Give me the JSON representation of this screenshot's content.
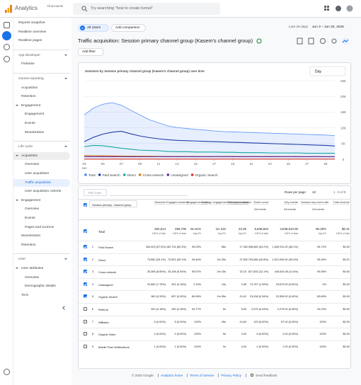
{
  "topbar": {
    "product": "Analytics",
    "account": "All accounts",
    "search_placeholder": "Try searching \"how to create funnel\""
  },
  "sidebar": {
    "top": [
      "Reports snapshot",
      "Realtime overview",
      "Realtime pages"
    ],
    "sections": [
      {
        "title": "App developer",
        "items": [
          {
            "label": "Firebase"
          }
        ]
      },
      {
        "title": "Games reporting",
        "items": [
          {
            "label": "Acquisition"
          },
          {
            "label": "Retention"
          },
          {
            "label": "Engagement",
            "children": [
              "Engagement",
              "Events",
              "Monetization"
            ]
          }
        ]
      },
      {
        "title": "Life cycle",
        "items": [
          {
            "label": "Acquisition",
            "children": [
              "Overview",
              "User acquisition",
              "Traffic acquisition",
              "User acquisition cohorts"
            ]
          },
          {
            "label": "Engagement",
            "children": [
              "Overview",
              "Events",
              "Pages and screens"
            ]
          },
          {
            "label": "Monetization"
          },
          {
            "label": "Retention"
          }
        ]
      },
      {
        "title": "User",
        "items": [
          {
            "label": "User attributes",
            "children": [
              "Overview",
              "Demographic details"
            ]
          },
          {
            "label": "Tech"
          }
        ]
      }
    ]
  },
  "header": {
    "segment_letter": "A",
    "segment": "All Users",
    "add_comparison": "Add comparison",
    "range_label": "Last 28 days",
    "range": "Jun 3 – Jun 30, 2025",
    "title": "Traffic acquisition: Session primary channel group (Kasem's channel group)",
    "add_filter": "Add filter"
  },
  "chart_controls": {
    "granularity": "Day"
  },
  "chart_data": {
    "type": "line",
    "title": "Sessions by Session primary channel group (Kasem's channel group) over time",
    "x": [
      3,
      4,
      5,
      6,
      7,
      8,
      9,
      10,
      11,
      12,
      13,
      14,
      15,
      16,
      17,
      18,
      19,
      20,
      21,
      22,
      23,
      24,
      25,
      26,
      27,
      28,
      29,
      30
    ],
    "xlim": [
      3,
      30
    ],
    "xticks": [
      {
        "value": 3,
        "label": "03"
      },
      {
        "value": 5,
        "label": "05"
      },
      {
        "value": 7,
        "label": "07"
      },
      {
        "value": 9,
        "label": "09"
      },
      11,
      13,
      15,
      17,
      19,
      21,
      23,
      25,
      27,
      29
    ],
    "xtick_month": "Jun",
    "ylim": [
      0,
      25000
    ],
    "yticks": [
      0,
      {
        "value": 5000,
        "label": "5K"
      },
      {
        "value": 10000,
        "label": "10K"
      },
      {
        "value": 15000,
        "label": "15K"
      },
      {
        "value": 20000,
        "label": "20K"
      },
      {
        "value": 25000,
        "label": "25K"
      }
    ],
    "grid": true,
    "series": [
      {
        "name": "Total",
        "color": "#4285f4",
        "values": [
          14100,
          16300,
          17500,
          18000,
          17200,
          15600,
          14100,
          12600,
          11600,
          10600,
          10100,
          9800,
          9500,
          9300,
          9000,
          8800,
          8700,
          8600,
          8500,
          8400,
          8300,
          8200,
          8100,
          8000,
          7900,
          7800,
          7700,
          7500
        ]
      },
      {
        "name": "Paid Search",
        "color": "#1e3ea8",
        "values": [
          5600,
          7000,
          8000,
          8600,
          8900,
          8100,
          7400,
          6900,
          6500,
          6200,
          6000,
          5900,
          5800,
          5700,
          5600,
          5500,
          5400,
          5300,
          5200,
          5100,
          5000,
          4900,
          4800,
          4700,
          4600,
          4500,
          4400,
          4200
        ]
      },
      {
        "name": "Direct",
        "color": "#12a89e",
        "values": [
          4000,
          4400,
          4300,
          3900,
          3500,
          3200,
          2900,
          2800,
          2700,
          2500,
          2400,
          2400,
          2300,
          2300,
          2300,
          2200,
          2200,
          2100,
          2100,
          2100,
          2000,
          2000,
          2000,
          2000,
          1900,
          1900,
          1900,
          1900
        ]
      },
      {
        "name": "Cross-network",
        "color": "#e8710a",
        "values": [
          1200,
          1100,
          1150,
          1050,
          1000,
          980,
          950,
          940,
          920,
          900,
          880,
          900,
          880,
          870,
          860,
          900,
          880,
          870,
          860,
          850,
          880,
          870,
          860,
          850,
          840,
          850,
          840,
          830
        ]
      },
      {
        "name": "Unassigned",
        "color": "#5b2c9c",
        "values": [
          800,
          820,
          810,
          800,
          830,
          810,
          800,
          790,
          820,
          810,
          800,
          820,
          810,
          800,
          830,
          820,
          810,
          800,
          820,
          810,
          800,
          830,
          820,
          810,
          800,
          820,
          810,
          800
        ]
      },
      {
        "name": "Organic Search",
        "color": "#d93025",
        "values": [
          40,
          35,
          38,
          36,
          34,
          33,
          35,
          34,
          33,
          32,
          34,
          35,
          33,
          32,
          34,
          33,
          32,
          34,
          35,
          33,
          32,
          34,
          33,
          32,
          34,
          33,
          32,
          31
        ]
      }
    ]
  },
  "table": {
    "plot_rows": "Plot rows",
    "rows_per_page_label": "Rows per page:",
    "rows_per_page": "10",
    "pagination": "1 - 9 of 9",
    "columns": [
      {
        "label": "Session primary...channel group"
      },
      {
        "label": "Sessions"
      },
      {
        "label": "Engaged sessions"
      },
      {
        "label": "Engagement rate"
      },
      {
        "label": "Average engagement time per session"
      },
      {
        "label": "Events per session"
      },
      {
        "label": "Event count",
        "sub": "All events"
      },
      {
        "label": "Key events",
        "sub": "All events"
      },
      {
        "label": "Session key event rate",
        "sub": "All events"
      },
      {
        "label": "Total revenue"
      }
    ],
    "total_label": "Total",
    "total": [
      {
        "value": "294,614",
        "note": "100% of total"
      },
      {
        "value": "269,705",
        "note": "100% of total"
      },
      {
        "value": "91.61%",
        "note": "Avg 0%"
      },
      {
        "value": "1m 42s",
        "note": "Avg 0%"
      },
      {
        "value": "23.25",
        "note": "Avg 0%"
      },
      {
        "value": "6,848,823",
        "note": "100% of total"
      },
      {
        "value": "3,848,610.00",
        "note": "100% of total"
      },
      {
        "value": "95.29%",
        "note": "Avg 0%"
      },
      {
        "value": "$0.21",
        "note": "100% of total"
      }
    ],
    "rows": [
      {
        "checked": true,
        "cells": [
          "1",
          "Paid Search",
          "169,403 (57.5%)",
          "162,704 (60.3%)",
          "96.05%",
          "56s",
          "17.40",
          "2,958,680 (43.2%)",
          "1,849,911.00 (48.1%)",
          "95.71%",
          "$0.00"
        ]
      },
      {
        "checked": true,
        "cells": [
          "2",
          "Direct",
          "73,860 (25.1%)",
          "70,502 (26.1%)",
          "95.46%",
          "2m 25s",
          "37.82",
          "2,793,666 (40.8%)",
          "1,512,006.00 (39.3%)",
          "95.39%",
          "$0.21"
        ]
      },
      {
        "checked": true,
        "cells": [
          "3",
          "Cross-network",
          "26,365 (8.95%)",
          "25,198 (9.34%)",
          "95.57%",
          "2m 15s",
          "32.15",
          "827,633 (12.1%)",
          "445,644.00 (11.6%)",
          "95.05%",
          "$0.00"
        ]
      },
      {
        "checked": true,
        "cells": [
          "4",
          "Unassigned",
          "22,860 (7.76%)",
          "491 (0.18%)",
          "2.15%",
          "13s",
          "3.38",
          "74,787 (1.09%)",
          "23,670.00 (0.62%)",
          "0%",
          "$0.00"
        ]
      },
      {
        "checked": true,
        "cells": [
          "5",
          "Organic Search",
          "960 (0.33%)",
          "807 (0.30%)",
          "84.06%",
          "2m 55s",
          "24.42",
          "23,438 (0.34%)",
          "15,306.00 (0.40%)",
          "83.65%",
          "$0.00"
        ]
      },
      {
        "checked": false,
        "cells": [
          "6",
          "Referral",
          "520 (0.18%)",
          "490 (0.18%)",
          "94.77%",
          "6s",
          "5.63",
          "2,975 (0.04%)",
          "2,275.00 (0.06%)",
          "94.23%",
          "$0.00"
        ]
      },
      {
        "checked": false,
        "cells": [
          "7",
          "Affiliates",
          "5 (0.00%)",
          "5 (0.00%)",
          "100%",
          "49s",
          "24.60",
          "123 (0.00%)",
          "87.00 (0.00%)",
          "100%",
          "$0.00"
        ]
      },
      {
        "checked": false,
        "cells": [
          "8",
          "Organic Video",
          "2 (0.00%)",
          "2 (0.00%)",
          "100%",
          "5s",
          "4.00",
          "8 (0.00%)",
          "2.00 (0.00%)",
          "100%",
          "$0.00"
        ]
      },
      {
        "checked": false,
        "cells": [
          "9",
          "Mobile Push Notifications",
          "1 (0.00%)",
          "1 (0.00%)",
          "100%",
          "0s",
          "4.00",
          "4 (0.00%)",
          "1.00 (0.00%)",
          "100%",
          "$0.00"
        ]
      }
    ]
  },
  "footer": {
    "copyright": "© 2025 Google",
    "links": [
      "Analytics home",
      "Terms of Service",
      "Privacy Policy"
    ],
    "feedback": "Send feedback"
  }
}
